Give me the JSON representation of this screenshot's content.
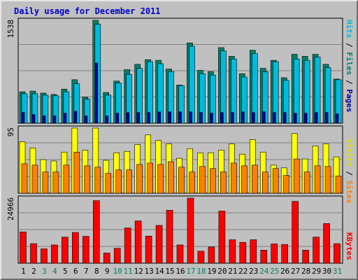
{
  "title": "Daily usage for December 2011",
  "colors": {
    "hits": "#00bbdd",
    "files": "#00806a",
    "pages": "#0000a0",
    "visits": "#ffff00",
    "sites": "#ff8000",
    "kbytes": "#ff0000",
    "weekday_label": "#000000",
    "weekend_label": "#00806a"
  },
  "chart_data": [
    {
      "type": "bar",
      "name": "pages-files-hits",
      "max_label": "1538",
      "ylim": [
        0,
        1538
      ],
      "legend": {
        "pages": "Pages",
        "files": "Files",
        "hits": "Hits",
        "separator": " / "
      },
      "categories": [
        "1",
        "2",
        "3",
        "4",
        "5",
        "6",
        "7",
        "8",
        "9",
        "10",
        "11",
        "12",
        "13",
        "14",
        "15",
        "16",
        "17",
        "18",
        "19",
        "20",
        "21",
        "22",
        "23",
        "24",
        "25",
        "26",
        "27",
        "28",
        "29",
        "30",
        "31"
      ],
      "series": [
        {
          "name": "Hits",
          "values": [
            440,
            440,
            420,
            410,
            470,
            590,
            360,
            1480,
            420,
            600,
            730,
            820,
            920,
            890,
            770,
            560,
            1150,
            740,
            720,
            1080,
            960,
            690,
            1040,
            770,
            920,
            640,
            960,
            940,
            990,
            830,
            650
          ]
        },
        {
          "name": "Files",
          "values": [
            470,
            480,
            450,
            430,
            510,
            650,
            390,
            1538,
            460,
            630,
            800,
            880,
            950,
            940,
            810,
            570,
            1200,
            790,
            770,
            1130,
            1000,
            740,
            1090,
            820,
            940,
            680,
            1030,
            1000,
            1030,
            880,
            660
          ]
        },
        {
          "name": "Pages",
          "values": [
            160,
            130,
            110,
            110,
            150,
            180,
            110,
            900,
            110,
            150,
            160,
            160,
            160,
            170,
            170,
            170,
            170,
            160,
            150,
            160,
            160,
            170,
            160,
            170,
            160,
            160,
            150,
            150,
            160,
            160,
            140
          ]
        }
      ]
    },
    {
      "type": "bar",
      "name": "sites-visits",
      "max_label": "95",
      "ylim": [
        0,
        95
      ],
      "legend": {
        "sites": "Sites",
        "visits": "Visits",
        "separator": " / "
      },
      "categories": [
        "1",
        "2",
        "3",
        "4",
        "5",
        "6",
        "7",
        "8",
        "9",
        "10",
        "11",
        "12",
        "13",
        "14",
        "15",
        "16",
        "17",
        "18",
        "19",
        "20",
        "21",
        "22",
        "23",
        "24",
        "25",
        "26",
        "27",
        "28",
        "29",
        "30",
        "31"
      ],
      "series": [
        {
          "name": "Visits",
          "values": [
            75,
            66,
            49,
            47,
            60,
            95,
            63,
            95,
            48,
            59,
            61,
            71,
            85,
            77,
            72,
            51,
            65,
            59,
            59,
            63,
            72,
            57,
            78,
            60,
            41,
            37,
            87,
            50,
            69,
            72,
            53
          ]
        },
        {
          "name": "Sites",
          "values": [
            43,
            41,
            31,
            31,
            41,
            60,
            40,
            38,
            29,
            34,
            34,
            42,
            44,
            42,
            46,
            38,
            31,
            39,
            36,
            31,
            44,
            40,
            41,
            31,
            36,
            26,
            50,
            31,
            40,
            39,
            25
          ]
        }
      ]
    },
    {
      "type": "bar",
      "name": "kbytes",
      "max_label": "24966",
      "ylim": [
        0,
        24966
      ],
      "legend": {
        "kbytes": "KBytes"
      },
      "categories": [
        "1",
        "2",
        "3",
        "4",
        "5",
        "6",
        "7",
        "8",
        "9",
        "10",
        "11",
        "12",
        "13",
        "14",
        "15",
        "16",
        "17",
        "18",
        "19",
        "20",
        "21",
        "22",
        "23",
        "24",
        "25",
        "26",
        "27",
        "28",
        "29",
        "30",
        "31"
      ],
      "series": [
        {
          "name": "KBytes",
          "values": [
            12000,
            7500,
            5500,
            7000,
            10000,
            11800,
            10300,
            24000,
            3900,
            5700,
            13500,
            16200,
            10400,
            14500,
            20300,
            7000,
            24966,
            4600,
            6200,
            20000,
            9000,
            8000,
            9000,
            5000,
            7400,
            7200,
            23700,
            5000,
            10000,
            15200,
            7500
          ]
        }
      ]
    }
  ]
}
